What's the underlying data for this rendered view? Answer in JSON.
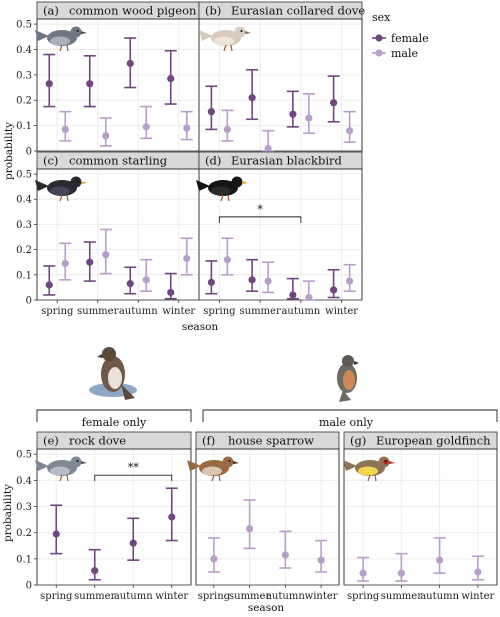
{
  "legend": {
    "title": "sex",
    "items": [
      {
        "label": "female",
        "color": "#72467e"
      },
      {
        "label": "male",
        "color": "#b99ecb"
      }
    ]
  },
  "group_labels": {
    "female_only": "female only",
    "male_only": "male only"
  },
  "icons": {
    "bird_left": "bird-of-prey-icon",
    "bird_right": "hawk-icon"
  },
  "chart_data": [
    {
      "panel": "(a)",
      "title": "common wood pigeon",
      "type": "scatter",
      "categories": [
        "spring",
        "summer",
        "autumn",
        "winter"
      ],
      "ylabel": "probability",
      "xlabel": "",
      "ylim": [
        0,
        0.52
      ],
      "yticks": [
        0,
        0.1,
        0.2,
        0.3,
        0.4,
        0.5
      ],
      "show_y_ticks": true,
      "show_x_ticks": false,
      "show_y_label": false,
      "icon": "pigeon-icon",
      "series": [
        {
          "name": "female",
          "values": [
            0.265,
            0.265,
            0.345,
            0.285
          ],
          "lower": [
            0.175,
            0.175,
            0.25,
            0.185
          ],
          "upper": [
            0.38,
            0.375,
            0.445,
            0.395
          ]
        },
        {
          "name": "male",
          "values": [
            0.085,
            0.06,
            0.095,
            0.09
          ],
          "lower": [
            0.04,
            0.02,
            0.05,
            0.045
          ],
          "upper": [
            0.155,
            0.13,
            0.175,
            0.155
          ]
        }
      ],
      "annotations": []
    },
    {
      "panel": "(b)",
      "title": "Eurasian collared dove",
      "type": "scatter",
      "categories": [
        "spring",
        "summer",
        "autumn",
        "winter"
      ],
      "ylabel": "",
      "xlabel": "",
      "ylim": [
        0,
        0.52
      ],
      "yticks": [
        0,
        0.1,
        0.2,
        0.3,
        0.4,
        0.5
      ],
      "show_y_ticks": false,
      "show_x_ticks": false,
      "show_y_label": false,
      "icon": "dove-icon",
      "series": [
        {
          "name": "female",
          "values": [
            0.155,
            0.21,
            0.145,
            0.19
          ],
          "lower": [
            0.085,
            0.125,
            0.095,
            0.115
          ],
          "upper": [
            0.255,
            0.32,
            0.235,
            0.295
          ]
        },
        {
          "name": "male",
          "values": [
            0.085,
            0.01,
            0.13,
            0.08
          ],
          "lower": [
            0.04,
            0.0,
            0.07,
            0.035
          ],
          "upper": [
            0.16,
            0.08,
            0.225,
            0.155
          ]
        }
      ],
      "annotations": []
    },
    {
      "panel": "(c)",
      "title": "common starling",
      "type": "scatter",
      "categories": [
        "spring",
        "summer",
        "autumn",
        "winter"
      ],
      "ylabel": "probability",
      "xlabel": "season",
      "ylim": [
        0,
        0.52
      ],
      "yticks": [
        0,
        0.1,
        0.2,
        0.3,
        0.4,
        0.5
      ],
      "show_y_ticks": true,
      "show_x_ticks": true,
      "show_y_label": false,
      "icon": "starling-icon",
      "series": [
        {
          "name": "female",
          "values": [
            0.06,
            0.15,
            0.065,
            0.03
          ],
          "lower": [
            0.02,
            0.075,
            0.025,
            0.005
          ],
          "upper": [
            0.135,
            0.23,
            0.13,
            0.105
          ]
        },
        {
          "name": "male",
          "values": [
            0.145,
            0.18,
            0.08,
            0.165
          ],
          "lower": [
            0.08,
            0.105,
            0.035,
            0.1
          ],
          "upper": [
            0.225,
            0.28,
            0.16,
            0.245
          ]
        }
      ],
      "annotations": []
    },
    {
      "panel": "(d)",
      "title": "Eurasian blackbird",
      "type": "scatter",
      "categories": [
        "spring",
        "summer",
        "autumn",
        "winter"
      ],
      "ylabel": "",
      "xlabel": "",
      "ylim": [
        0,
        0.52
      ],
      "yticks": [
        0,
        0.1,
        0.2,
        0.3,
        0.4,
        0.5
      ],
      "show_y_ticks": false,
      "show_x_ticks": true,
      "show_y_label": false,
      "icon": "blackbird-icon",
      "series": [
        {
          "name": "female",
          "values": [
            0.07,
            0.08,
            0.02,
            0.04
          ],
          "lower": [
            0.025,
            0.035,
            0.005,
            0.01
          ],
          "upper": [
            0.155,
            0.16,
            0.085,
            0.12
          ]
        },
        {
          "name": "male",
          "values": [
            0.16,
            0.075,
            0.01,
            0.075
          ],
          "lower": [
            0.1,
            0.03,
            0.0,
            0.035
          ],
          "upper": [
            0.245,
            0.15,
            0.075,
            0.14
          ]
        }
      ],
      "annotations": [
        {
          "text": "*",
          "from": 0,
          "to": 2,
          "y": 0.33
        }
      ]
    },
    {
      "panel": "(e)",
      "title": "rock dove",
      "type": "scatter",
      "categories": [
        "spring",
        "summer",
        "autumn",
        "winter"
      ],
      "ylabel": "probability",
      "xlabel": "",
      "ylim": [
        0,
        0.52
      ],
      "yticks": [
        0,
        0.1,
        0.2,
        0.3,
        0.4,
        0.5
      ],
      "show_y_ticks": true,
      "show_x_ticks": true,
      "show_y_label": true,
      "icon": "rock-dove-icon",
      "series": [
        {
          "name": "female",
          "values": [
            0.195,
            0.055,
            0.16,
            0.26
          ],
          "lower": [
            0.12,
            0.02,
            0.095,
            0.17
          ],
          "upper": [
            0.305,
            0.135,
            0.255,
            0.37
          ]
        }
      ],
      "annotations": [
        {
          "text": "**",
          "from": 1,
          "to": 3,
          "y": 0.42
        }
      ]
    },
    {
      "panel": "(f)",
      "title": "house sparrow",
      "type": "scatter",
      "categories": [
        "spring",
        "summer",
        "autumn",
        "winter"
      ],
      "ylabel": "",
      "xlabel": "season",
      "ylim": [
        0,
        0.52
      ],
      "yticks": [
        0,
        0.1,
        0.2,
        0.3,
        0.4,
        0.5
      ],
      "show_y_ticks": false,
      "show_x_ticks": true,
      "show_y_label": false,
      "icon": "sparrow-icon",
      "series": [
        {
          "name": "male",
          "values": [
            0.1,
            0.215,
            0.115,
            0.095
          ],
          "lower": [
            0.05,
            0.14,
            0.065,
            0.05
          ],
          "upper": [
            0.18,
            0.325,
            0.205,
            0.17
          ]
        }
      ],
      "annotations": []
    },
    {
      "panel": "(g)",
      "title": "European goldfinch",
      "type": "scatter",
      "categories": [
        "spring",
        "summer",
        "autumn",
        "winter"
      ],
      "ylabel": "",
      "xlabel": "",
      "ylim": [
        0,
        0.52
      ],
      "yticks": [
        0,
        0.1,
        0.2,
        0.3,
        0.4,
        0.5
      ],
      "show_y_ticks": false,
      "show_x_ticks": true,
      "show_y_label": false,
      "icon": "goldfinch-icon",
      "series": [
        {
          "name": "male",
          "values": [
            0.045,
            0.045,
            0.095,
            0.05
          ],
          "lower": [
            0.015,
            0.015,
            0.045,
            0.02
          ],
          "upper": [
            0.105,
            0.12,
            0.18,
            0.11
          ]
        }
      ],
      "annotations": []
    }
  ]
}
